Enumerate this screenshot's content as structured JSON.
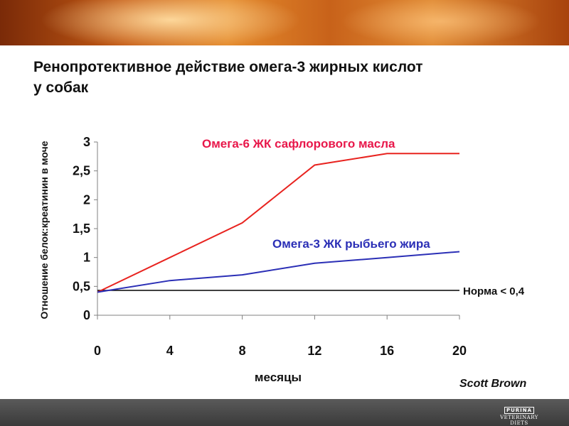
{
  "title_lines": [
    "Ренопротективное действие омега-3 жирных кислот",
    "у собак"
  ],
  "author": "Scott Brown",
  "logo": {
    "brand": "PURINA",
    "line1": "VETERINARY",
    "line2": "DIETS"
  },
  "chart_data": {
    "type": "line",
    "xlabel": "месяцы",
    "ylabel": "Отношение белок:креатинин в моче",
    "x": [
      0,
      4,
      8,
      12,
      16,
      20
    ],
    "xlim": [
      0,
      20
    ],
    "ylim": [
      0,
      3
    ],
    "x_ticks": [
      "0",
      "4",
      "8",
      "12",
      "16",
      "20"
    ],
    "y_ticks": [
      {
        "value": 0,
        "label": "0"
      },
      {
        "value": 0.5,
        "label": "0,5"
      },
      {
        "value": 1,
        "label": "1"
      },
      {
        "value": 1.5,
        "label": "1,5"
      },
      {
        "value": 2,
        "label": "2"
      },
      {
        "value": 2.5,
        "label": "2,5"
      },
      {
        "value": 3,
        "label": "3"
      }
    ],
    "grid": false,
    "series": [
      {
        "name": "Омега-6 ЖК сафлорового масла",
        "color": "#e8231f",
        "values": [
          0.4,
          1.0,
          1.6,
          2.6,
          2.8,
          2.8
        ]
      },
      {
        "name": "Омега-3 ЖК рыбьего жира",
        "color": "#2b2fb6",
        "values": [
          0.4,
          0.6,
          0.7,
          0.9,
          1.0,
          1.1
        ]
      }
    ],
    "reference_line": {
      "label": "Норма < 0,4",
      "value": 0.43,
      "x_end": 20,
      "color": "#000000"
    },
    "label_colors": {
      "omega6": "#e8174a",
      "omega3": "#2b2fb6"
    }
  }
}
